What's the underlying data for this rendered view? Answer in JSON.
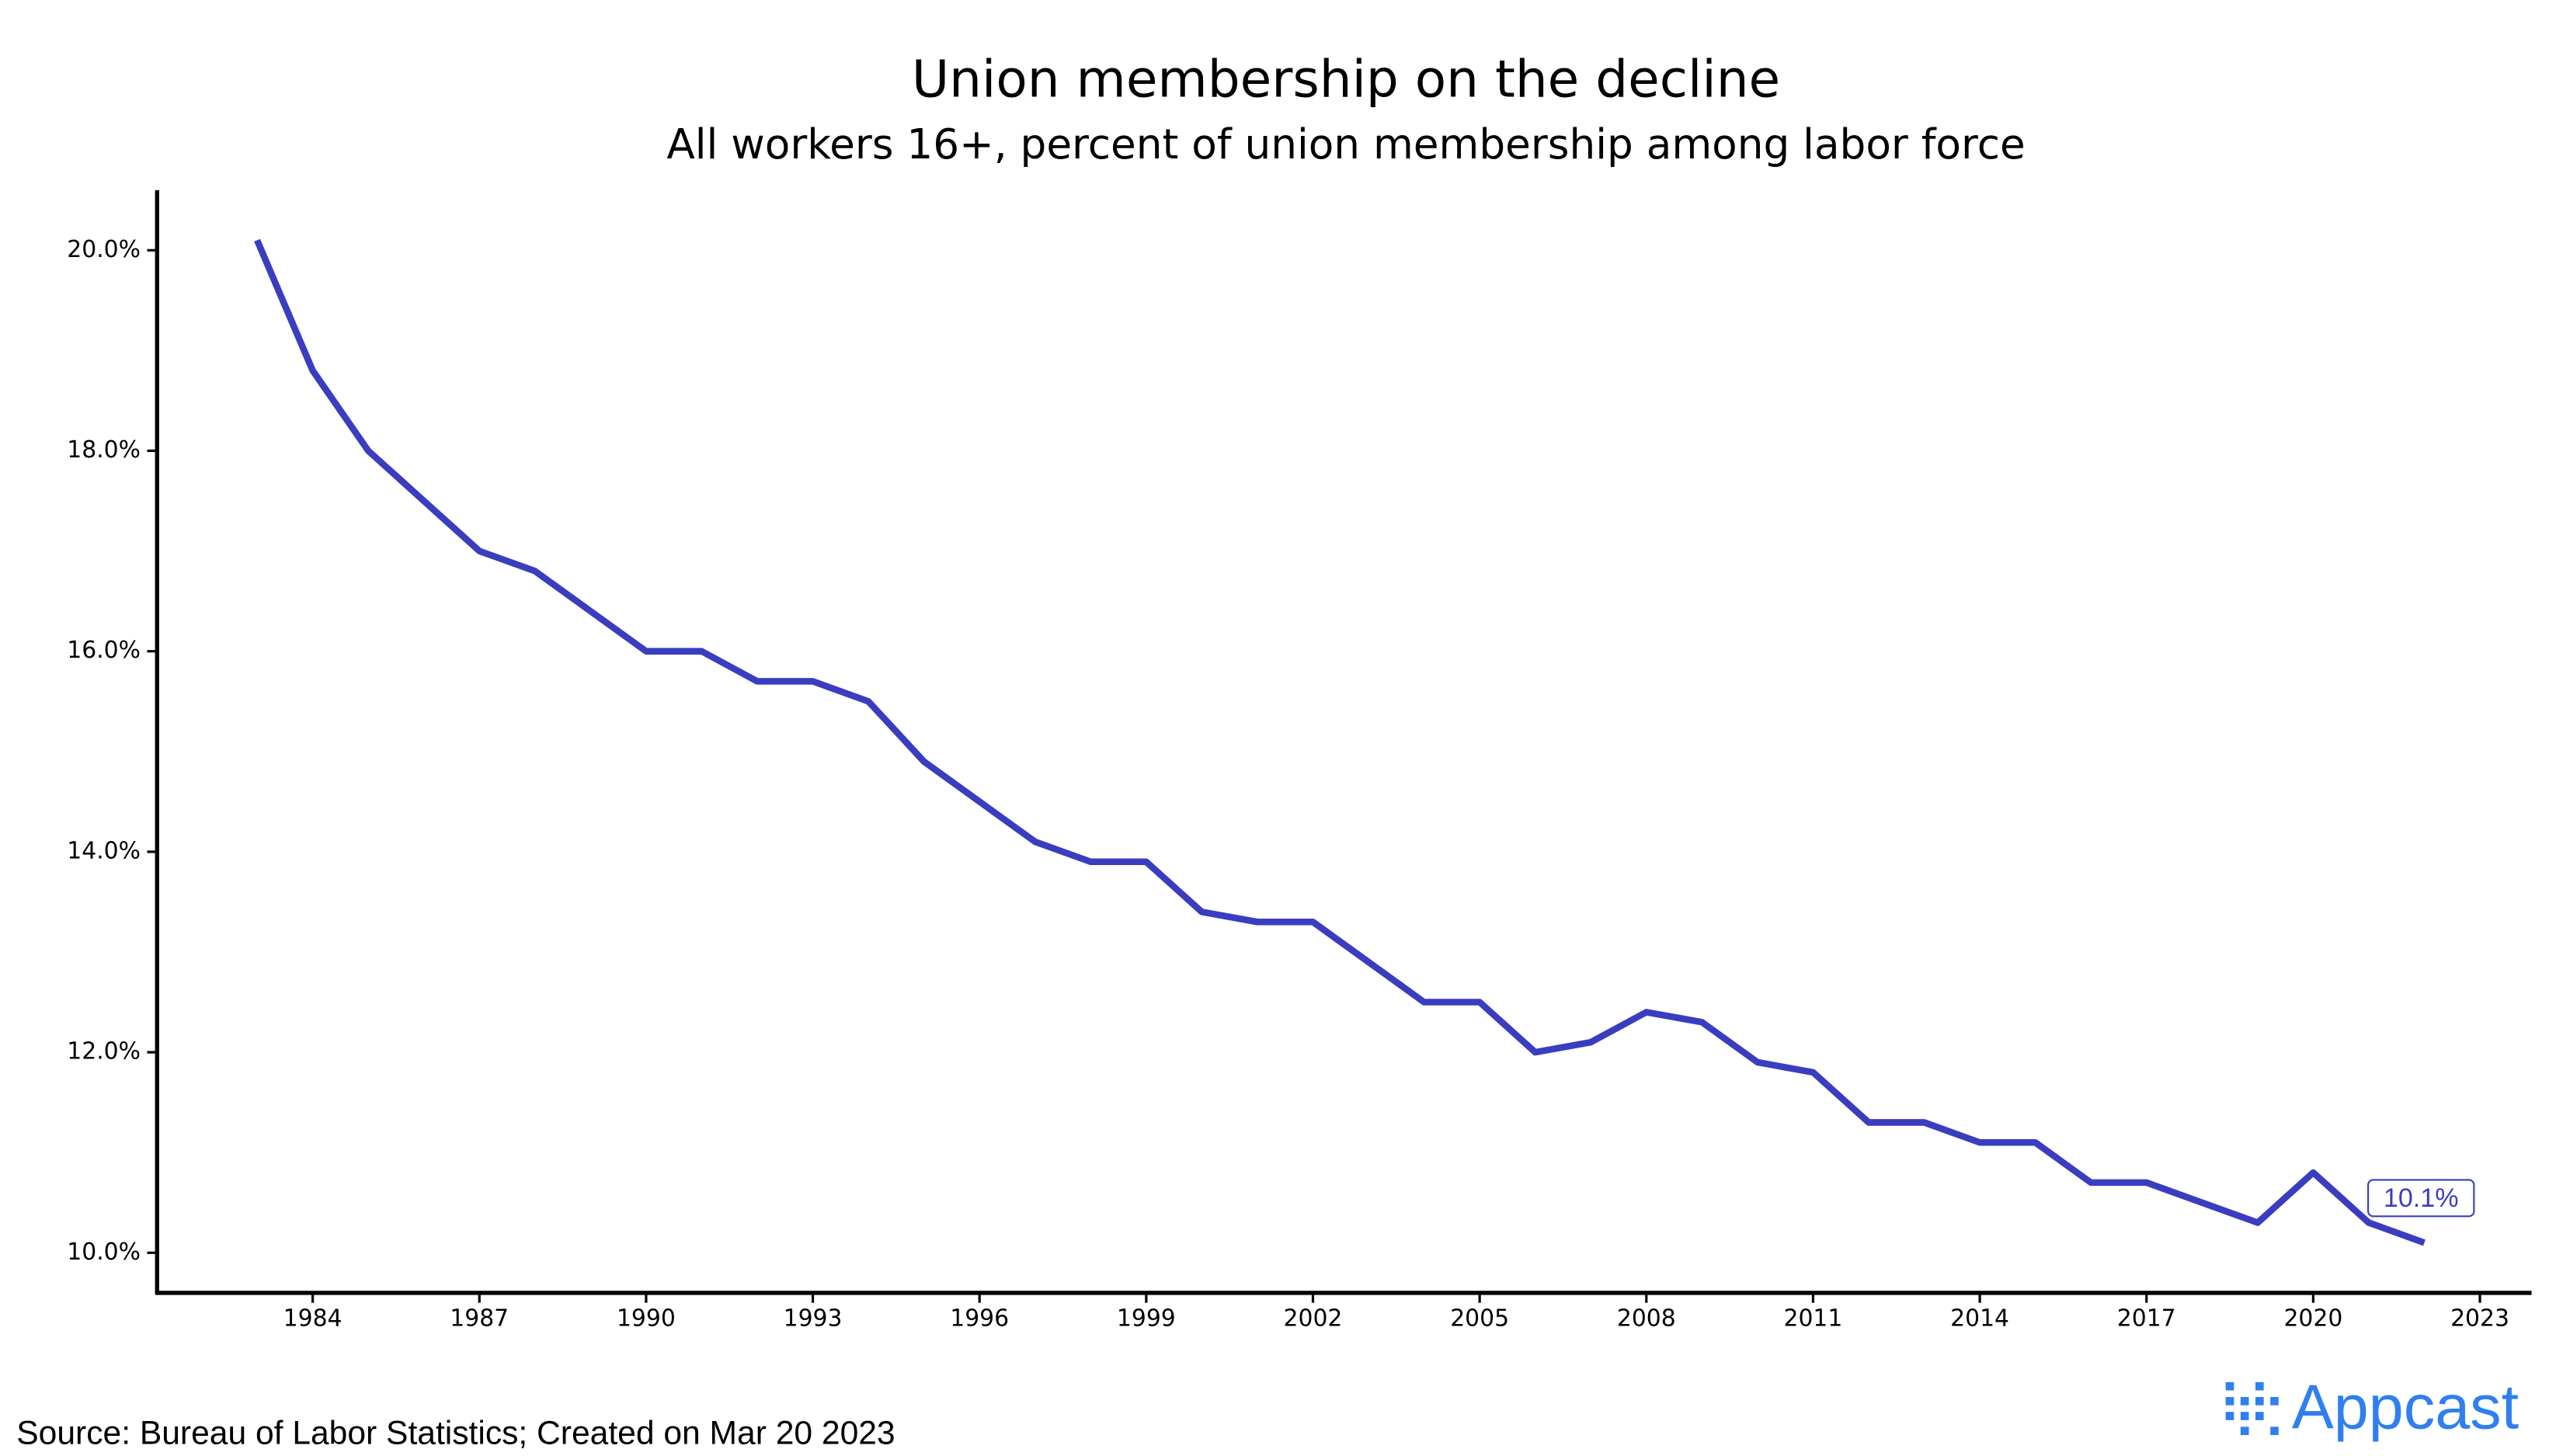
{
  "chart_data": {
    "type": "line",
    "title": "Union membership on the decline",
    "subtitle": "All workers 16+, percent of union membership among labor force",
    "x": [
      1983,
      1984,
      1985,
      1986,
      1987,
      1988,
      1989,
      1990,
      1991,
      1992,
      1993,
      1994,
      1995,
      1996,
      1997,
      1998,
      1999,
      2000,
      2001,
      2002,
      2003,
      2004,
      2005,
      2006,
      2007,
      2008,
      2009,
      2010,
      2011,
      2012,
      2013,
      2014,
      2015,
      2016,
      2017,
      2018,
      2019,
      2020,
      2021,
      2022
    ],
    "series": [
      {
        "color": "#3a3dbf",
        "values": [
          20.1,
          18.8,
          18.0,
          17.5,
          17.0,
          16.8,
          16.4,
          16.0,
          16.0,
          15.7,
          15.7,
          15.5,
          14.9,
          14.5,
          14.1,
          13.9,
          13.9,
          13.4,
          13.3,
          13.3,
          12.9,
          12.5,
          12.5,
          12.0,
          12.1,
          12.4,
          12.3,
          11.9,
          11.8,
          11.3,
          11.3,
          11.1,
          11.1,
          10.7,
          10.7,
          10.5,
          10.3,
          10.8,
          10.3,
          10.1
        ],
        "value_labels": [
          null,
          null,
          null,
          null,
          null,
          null,
          null,
          null,
          null,
          null,
          null,
          null,
          null,
          null,
          null,
          null,
          null,
          null,
          null,
          null,
          null,
          null,
          null,
          null,
          null,
          null,
          null,
          null,
          null,
          null,
          null,
          null,
          null,
          null,
          null,
          null,
          null,
          null,
          null,
          "10.1%"
        ]
      }
    ],
    "xlim": [
      1981.2,
      2023.9
    ],
    "xticks": [
      1984,
      1987,
      1990,
      1993,
      1996,
      1999,
      2002,
      2005,
      2008,
      2011,
      2014,
      2017,
      2020,
      2023
    ],
    "ylim": [
      9.6,
      20.6
    ],
    "yticks": [
      {
        "value": 10,
        "label": "10.0%"
      },
      {
        "value": 12,
        "label": "12.0%"
      },
      {
        "value": 14,
        "label": "14.0%"
      },
      {
        "value": 16,
        "label": "16.0%"
      },
      {
        "value": 18,
        "label": "18.0%"
      },
      {
        "value": 20,
        "label": "20.0%"
      }
    ],
    "grid": false,
    "source": "Source: Bureau of Labor Statistics; Created on Mar 20 2023",
    "logo": "Appcast"
  }
}
